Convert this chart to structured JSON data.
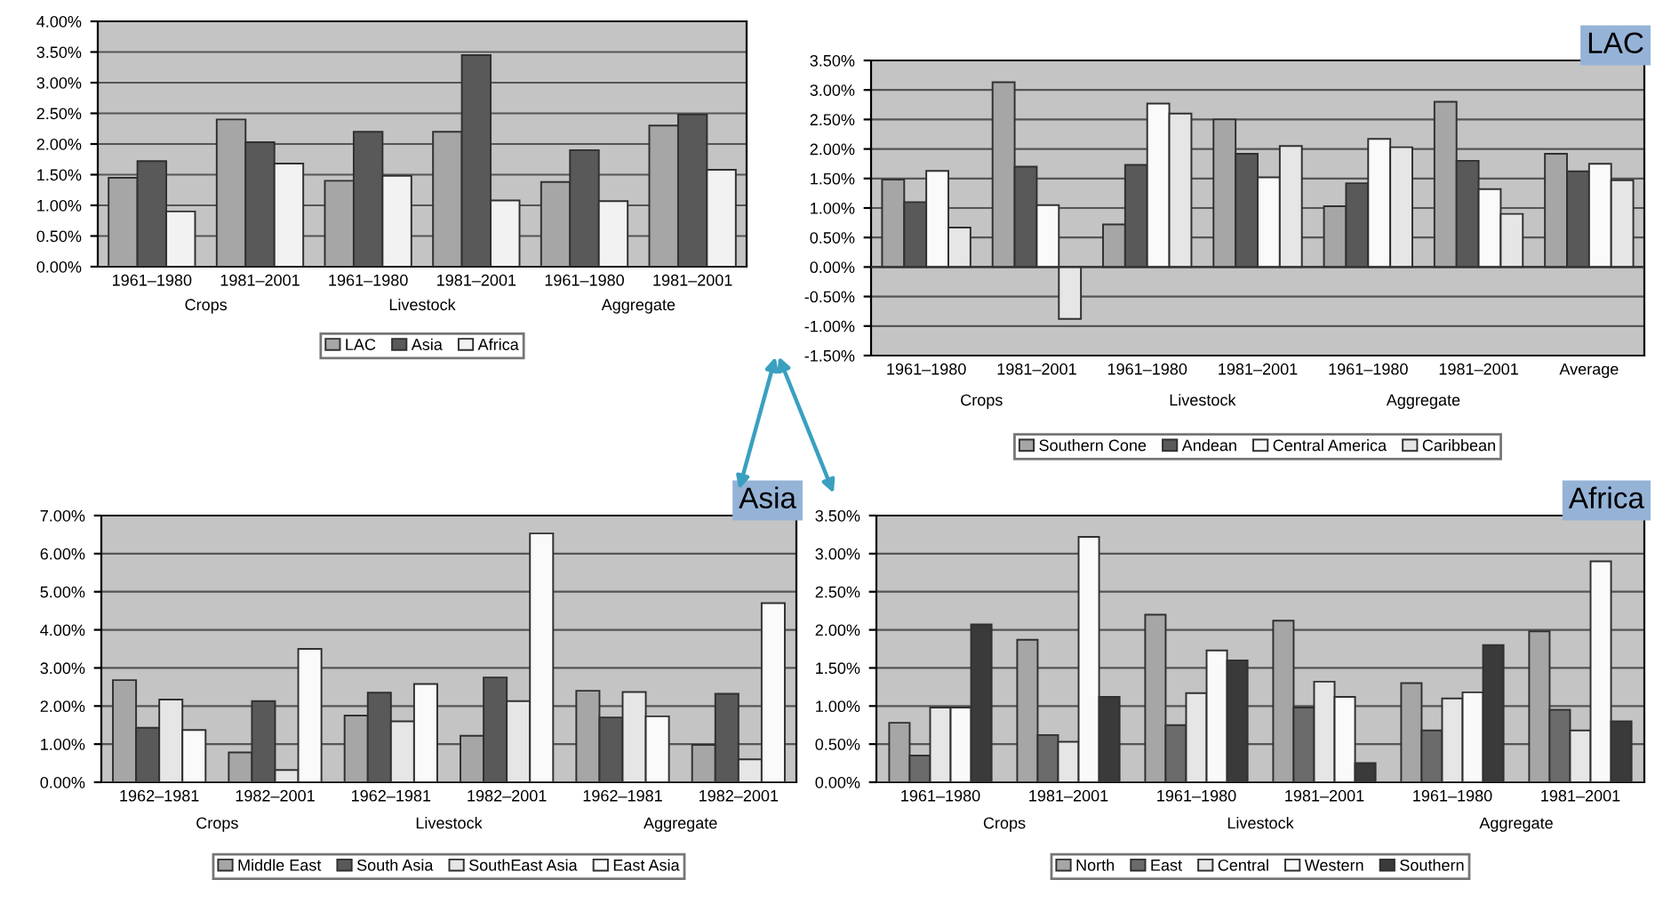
{
  "chart_data": [
    {
      "type": "bar",
      "categories": [
        "1961–1980",
        "1981–2001",
        "1961–1980",
        "1981–2001",
        "1961–1980",
        "1981–2001"
      ],
      "annotations": [
        "Crops",
        "Livestock",
        "Aggregate"
      ],
      "series": [
        {
          "name": "LAC",
          "color": "#a6a6a6",
          "values": [
            1.45,
            2.4,
            1.4,
            2.2,
            1.38,
            2.3
          ]
        },
        {
          "name": "Asia",
          "color": "#595959",
          "values": [
            1.72,
            2.03,
            2.2,
            3.45,
            1.9,
            2.48
          ]
        },
        {
          "name": "Africa",
          "color": "#f2f2f2",
          "values": [
            0.9,
            1.68,
            1.48,
            1.08,
            1.07,
            1.58
          ]
        }
      ],
      "ylim": [
        0,
        4
      ],
      "yticks": [
        {
          "value": 0,
          "label": "0.00%"
        },
        {
          "value": 0.5,
          "label": "0.50%"
        },
        {
          "value": 1,
          "label": "1.00%"
        },
        {
          "value": 1.5,
          "label": "1.50%"
        },
        {
          "value": 2,
          "label": "2.00%"
        },
        {
          "value": 2.5,
          "label": "2.50%"
        },
        {
          "value": 3,
          "label": "3.00%"
        },
        {
          "value": 3.5,
          "label": "3.50%"
        },
        {
          "value": 4,
          "label": "4.00%"
        }
      ],
      "grid": "y",
      "legend": "bottom"
    },
    {
      "type": "bar",
      "title": "LAC",
      "categories": [
        "1961–1980",
        "1981–2001",
        "1961–1980",
        "1981–2001",
        "1961–1980",
        "1981–2001",
        "Average"
      ],
      "annotations": [
        "Crops",
        "Livestock",
        "Aggregate"
      ],
      "series": [
        {
          "name": "Southern Cone",
          "color": "#a6a6a6",
          "values": [
            1.48,
            3.13,
            0.72,
            2.5,
            1.03,
            2.8,
            1.92
          ]
        },
        {
          "name": "Andean",
          "color": "#595959",
          "values": [
            1.1,
            1.7,
            1.73,
            1.92,
            1.42,
            1.8,
            1.62
          ]
        },
        {
          "name": "Central America",
          "color": "#fafafa",
          "values": [
            1.63,
            1.05,
            2.77,
            1.52,
            2.17,
            1.32,
            1.75
          ]
        },
        {
          "name": "Caribbean",
          "color": "#e6e6e6",
          "values": [
            0.67,
            -0.88,
            2.6,
            2.05,
            2.03,
            0.9,
            1.47
          ]
        }
      ],
      "ylim": [
        -1.5,
        3.5
      ],
      "yticks": [
        {
          "value": -1.5,
          "label": "-1.50%"
        },
        {
          "value": -1,
          "label": "-1.00%"
        },
        {
          "value": -0.5,
          "label": "-0.50%"
        },
        {
          "value": 0,
          "label": "0.00%"
        },
        {
          "value": 0.5,
          "label": "0.50%"
        },
        {
          "value": 1,
          "label": "1.00%"
        },
        {
          "value": 1.5,
          "label": "1.50%"
        },
        {
          "value": 2,
          "label": "2.00%"
        },
        {
          "value": 2.5,
          "label": "2.50%"
        },
        {
          "value": 3,
          "label": "3.00%"
        },
        {
          "value": 3.5,
          "label": "3.50%"
        }
      ],
      "grid": "y",
      "legend": "bottom"
    },
    {
      "type": "bar",
      "title": "Asia",
      "categories": [
        "1962–1981",
        "1982–2001",
        "1962–1981",
        "1982–2001",
        "1962–1981",
        "1982–2001"
      ],
      "annotations": [
        "Crops",
        "Livestock",
        "Aggregate"
      ],
      "series": [
        {
          "name": "Middle East",
          "color": "#a6a6a6",
          "values": [
            2.68,
            0.78,
            1.75,
            1.22,
            2.4,
            0.98
          ]
        },
        {
          "name": "South Asia",
          "color": "#595959",
          "values": [
            1.43,
            2.13,
            2.35,
            2.75,
            1.7,
            2.32
          ]
        },
        {
          "name": "SouthEast Asia",
          "color": "#e6e6e6",
          "values": [
            2.17,
            0.32,
            1.6,
            2.13,
            2.37,
            0.6
          ]
        },
        {
          "name": "East Asia",
          "color": "#fafafa",
          "values": [
            1.37,
            3.5,
            2.58,
            6.53,
            1.73,
            4.7
          ]
        }
      ],
      "ylim": [
        0,
        7
      ],
      "yticks": [
        {
          "value": 0,
          "label": "0.00%"
        },
        {
          "value": 1,
          "label": "1.00%"
        },
        {
          "value": 2,
          "label": "2.00%"
        },
        {
          "value": 3,
          "label": "3.00%"
        },
        {
          "value": 4,
          "label": "4.00%"
        },
        {
          "value": 5,
          "label": "5.00%"
        },
        {
          "value": 6,
          "label": "6.00%"
        },
        {
          "value": 7,
          "label": "7.00%"
        }
      ],
      "grid": "y",
      "legend": "bottom"
    },
    {
      "type": "bar",
      "title": "Africa",
      "categories": [
        "1961–1980",
        "1981–2001",
        "1961–1980",
        "1981–2001",
        "1961–1980",
        "1981–2001"
      ],
      "annotations": [
        "Crops",
        "Livestock",
        "Aggregate"
      ],
      "series": [
        {
          "name": "North",
          "color": "#a6a6a6",
          "values": [
            0.78,
            1.87,
            2.2,
            2.12,
            1.3,
            1.98
          ]
        },
        {
          "name": "East",
          "color": "#6b6b6b",
          "values": [
            0.35,
            0.62,
            0.75,
            0.98,
            0.68,
            0.95
          ]
        },
        {
          "name": "Central",
          "color": "#e6e6e6",
          "values": [
            0.98,
            0.53,
            1.17,
            1.32,
            1.1,
            0.68
          ]
        },
        {
          "name": "Western",
          "color": "#fafafa",
          "values": [
            0.98,
            3.22,
            1.73,
            1.12,
            1.18,
            2.9
          ]
        },
        {
          "name": "Southern",
          "color": "#3a3a3a",
          "values": [
            2.07,
            1.12,
            1.6,
            0.25,
            1.8,
            0.8
          ]
        }
      ],
      "ylim": [
        0,
        3.5
      ],
      "yticks": [
        {
          "value": 0,
          "label": "0.00%"
        },
        {
          "value": 0.5,
          "label": "0.50%"
        },
        {
          "value": 1,
          "label": "1.00%"
        },
        {
          "value": 1.5,
          "label": "1.50%"
        },
        {
          "value": 2,
          "label": "2.00%"
        },
        {
          "value": 2.5,
          "label": "2.50%"
        },
        {
          "value": 3,
          "label": "3.00%"
        },
        {
          "value": 3.5,
          "label": "3.50%"
        }
      ],
      "grid": "y",
      "legend": "bottom"
    }
  ]
}
